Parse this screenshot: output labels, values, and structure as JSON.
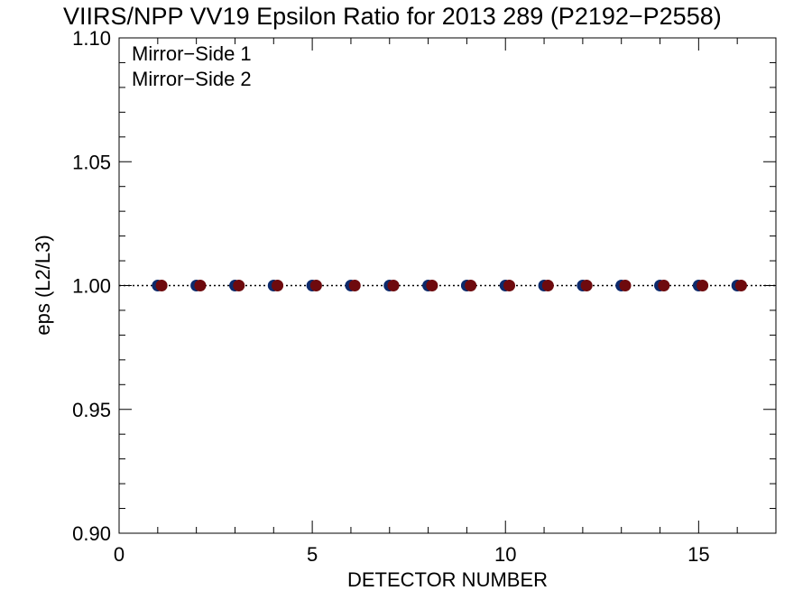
{
  "chart_data": {
    "type": "scatter",
    "title": "VIIRS/NPP VV19 Epsilon Ratio for 2013 289 (P2192−P2558)",
    "xlabel": "DETECTOR NUMBER",
    "ylabel": "eps (L2/L3)",
    "xlim": [
      0,
      17
    ],
    "ylim": [
      0.9,
      1.1
    ],
    "x_ticks": [
      0,
      5,
      10,
      15
    ],
    "x_tick_labels": [
      "0",
      "5",
      "10",
      "15"
    ],
    "y_ticks": [
      0.9,
      0.95,
      1.0,
      1.05,
      1.1
    ],
    "y_tick_labels": [
      "0.90",
      "0.95",
      "1.00",
      "1.05",
      "1.10"
    ],
    "grid": false,
    "legend_position": "top-left",
    "reference_line": {
      "y": 1.0,
      "style": "dotted"
    },
    "series": [
      {
        "name": "Mirror−Side 1",
        "color": "#0d2a6b",
        "x": [
          1,
          2,
          3,
          4,
          5,
          6,
          7,
          8,
          9,
          10,
          11,
          12,
          13,
          14,
          15,
          16
        ],
        "y": [
          1.0,
          1.0,
          1.0,
          1.0,
          1.0,
          1.0,
          1.0,
          1.0,
          1.0,
          1.0,
          1.0,
          1.0,
          1.0,
          1.0,
          1.0,
          1.0
        ]
      },
      {
        "name": "Mirror−Side 2",
        "color": "#6e0a0e",
        "x": [
          1.1,
          2.1,
          3.1,
          4.1,
          5.1,
          6.1,
          7.1,
          8.1,
          9.1,
          10.1,
          11.1,
          12.1,
          13.1,
          14.1,
          15.1,
          16.1
        ],
        "y": [
          1.0,
          1.0,
          1.0,
          1.0,
          1.0,
          1.0,
          1.0,
          1.0,
          1.0,
          1.0,
          1.0,
          1.0,
          1.0,
          1.0,
          1.0,
          1.0
        ]
      }
    ]
  }
}
